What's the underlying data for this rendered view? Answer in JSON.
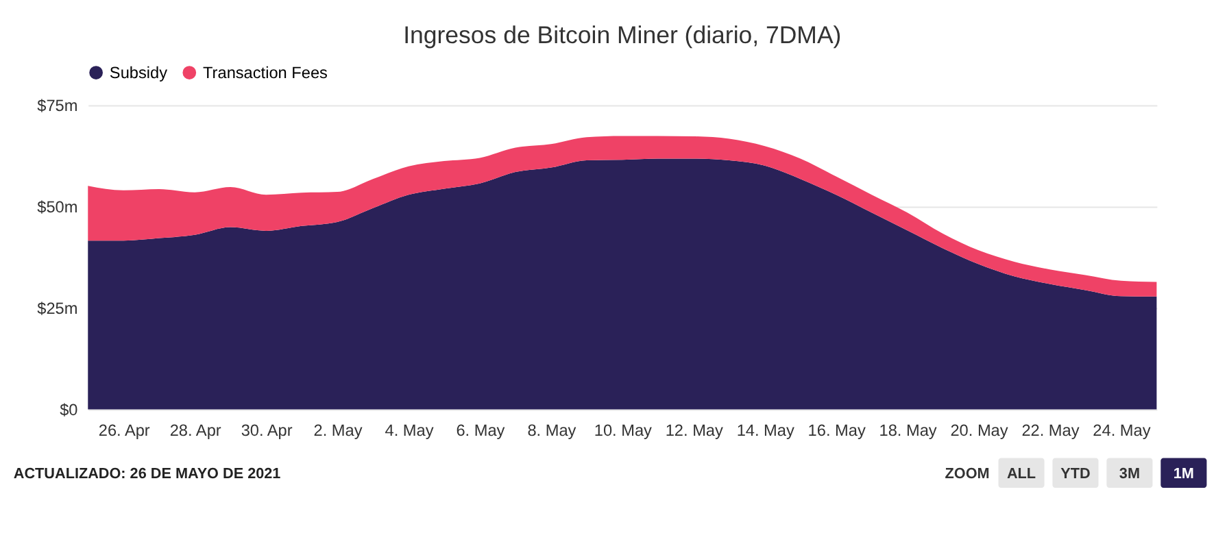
{
  "chart_data": {
    "type": "area",
    "title": "Ingresos de Bitcoin Miner (diario, 7DMA)",
    "stacked": true,
    "legend": "top",
    "grid": "y",
    "x": [
      "2021-04-25",
      "2021-04-26",
      "2021-04-27",
      "2021-04-28",
      "2021-04-29",
      "2021-04-30",
      "2021-05-01",
      "2021-05-02",
      "2021-05-03",
      "2021-05-04",
      "2021-05-05",
      "2021-05-06",
      "2021-05-07",
      "2021-05-08",
      "2021-05-09",
      "2021-05-10",
      "2021-05-11",
      "2021-05-12",
      "2021-05-13",
      "2021-05-14",
      "2021-05-15",
      "2021-05-16",
      "2021-05-17",
      "2021-05-18",
      "2021-05-19",
      "2021-05-20",
      "2021-05-21",
      "2021-05-22",
      "2021-05-23",
      "2021-05-24",
      "2021-05-25"
    ],
    "series": [
      {
        "name": "Subsidy",
        "color": "#2a2158",
        "values": [
          41.6,
          41.6,
          42.2,
          43.0,
          44.9,
          44.0,
          45.2,
          46.2,
          49.6,
          52.9,
          54.4,
          55.7,
          58.5,
          59.6,
          61.4,
          61.5,
          61.8,
          61.8,
          61.4,
          60.1,
          56.8,
          52.9,
          48.5,
          44.1,
          39.7,
          35.8,
          32.8,
          30.9,
          29.4,
          27.9,
          27.8
        ]
      },
      {
        "name": "Transaction Fees",
        "color": "#ef4266",
        "values": [
          13.5,
          12.4,
          12.1,
          10.5,
          9.9,
          8.9,
          8.2,
          7.4,
          7.2,
          7.0,
          6.8,
          6.3,
          6.0,
          5.8,
          5.7,
          5.9,
          5.6,
          5.5,
          5.3,
          4.8,
          5.0,
          4.5,
          4.4,
          4.4,
          3.6,
          3.4,
          3.6,
          3.6,
          3.7,
          3.8,
          3.6
        ]
      }
    ],
    "xlim": [
      "2021-04-25",
      "2021-05-25"
    ],
    "xticks": [
      {
        "value": "2021-04-26",
        "label": "26. Apr"
      },
      {
        "value": "2021-04-28",
        "label": "28. Apr"
      },
      {
        "value": "2021-04-30",
        "label": "30. Apr"
      },
      {
        "value": "2021-05-02",
        "label": "2. May"
      },
      {
        "value": "2021-05-04",
        "label": "4. May"
      },
      {
        "value": "2021-05-06",
        "label": "6. May"
      },
      {
        "value": "2021-05-08",
        "label": "8. May"
      },
      {
        "value": "2021-05-10",
        "label": "10. May"
      },
      {
        "value": "2021-05-12",
        "label": "12. May"
      },
      {
        "value": "2021-05-14",
        "label": "14. May"
      },
      {
        "value": "2021-05-16",
        "label": "16. May"
      },
      {
        "value": "2021-05-18",
        "label": "18. May"
      },
      {
        "value": "2021-05-20",
        "label": "20. May"
      },
      {
        "value": "2021-05-22",
        "label": "22. May"
      },
      {
        "value": "2021-05-24",
        "label": "24. May"
      }
    ],
    "ylim": [
      0,
      75
    ],
    "yticks": [
      {
        "value": 0,
        "label": "$0"
      },
      {
        "value": 25,
        "label": "$25m"
      },
      {
        "value": 50,
        "label": "$50m"
      },
      {
        "value": 75,
        "label": "$75m"
      }
    ],
    "annotations": [
      "ACTUALIZADO: 26 DE MAYO DE 2021",
      "ZOOM",
      "ALL",
      "YTD",
      "3M",
      "1M"
    ]
  }
}
